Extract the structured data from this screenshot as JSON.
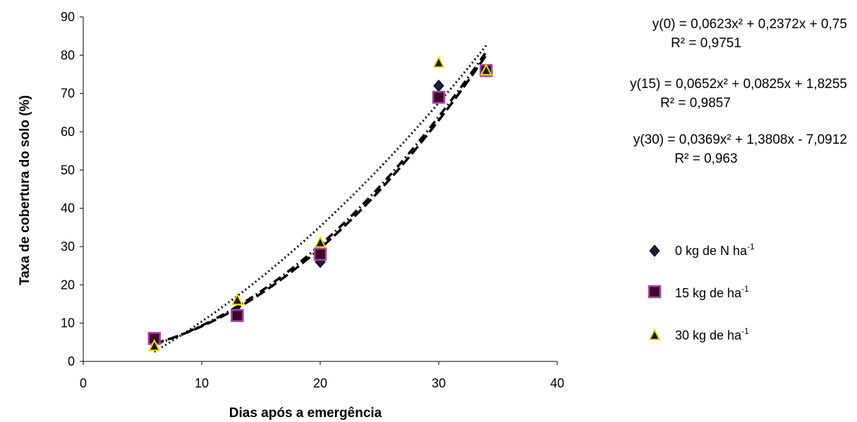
{
  "chart_data": {
    "type": "scatter",
    "xlabel": "Dias após a emergência",
    "ylabel": "Taxa de cobertura do solo (%)",
    "xlim": [
      0,
      40
    ],
    "ylim": [
      0,
      90
    ],
    "xticks": [
      0,
      10,
      20,
      30,
      40
    ],
    "yticks": [
      0,
      10,
      20,
      30,
      40,
      50,
      60,
      70,
      80,
      90
    ],
    "grid": false,
    "legend_position": "right",
    "series": [
      {
        "name": "0 kg de N ha",
        "name_sup": "-1",
        "marker": "diamond",
        "color": "#1a1a40",
        "x": [
          6,
          13,
          20,
          30,
          34
        ],
        "y": [
          5,
          13,
          26,
          72,
          76
        ],
        "trend": {
          "a": 0.0623,
          "b": 0.2372,
          "c": 0.75,
          "style": "dash-dot"
        },
        "equation": "y(0) = 0,0623x² + 0,2372x + 0,75",
        "r2": "R² = 0,9751"
      },
      {
        "name": "15 kg de ha",
        "name_sup": "-1",
        "marker": "square",
        "color": "#3a0a2a",
        "x": [
          6,
          13,
          20,
          30,
          34
        ],
        "y": [
          6,
          12,
          28,
          69,
          76
        ],
        "trend": {
          "a": 0.0652,
          "b": 0.0825,
          "c": 1.8255,
          "style": "dash"
        },
        "equation": "y(15) = 0,0652x² + 0,0825x + 1,8255",
        "r2": "R² = 0,9857"
      },
      {
        "name": "30 kg de ha",
        "name_sup": "-1",
        "marker": "triangle",
        "color": "#1a1a00",
        "x": [
          6,
          13,
          20,
          30,
          34
        ],
        "y": [
          4,
          16,
          31,
          78,
          76
        ],
        "trend": {
          "a": 0.0369,
          "b": 1.3808,
          "c": -7.0912,
          "style": "dot"
        },
        "equation": "y(30) = 0,0369x² + 1,3808x - 7,0912",
        "r2": "R² = 0,963"
      }
    ]
  }
}
